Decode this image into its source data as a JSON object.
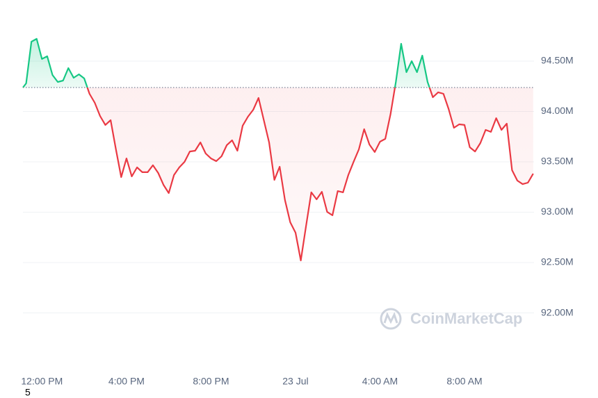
{
  "chart_data": {
    "type": "line",
    "watermark": "CoinMarketCap",
    "footnote": "5",
    "x": [
      -0.9,
      -0.75,
      -0.5,
      -0.25,
      0,
      0.25,
      0.5,
      0.75,
      1,
      1.25,
      1.5,
      1.75,
      2,
      2.25,
      2.5,
      2.75,
      3,
      3.25,
      3.5,
      3.75,
      4,
      4.25,
      4.5,
      4.75,
      5,
      5.25,
      5.5,
      5.75,
      6,
      6.25,
      6.5,
      6.75,
      7,
      7.25,
      7.5,
      7.75,
      8,
      8.25,
      8.5,
      8.75,
      9,
      9.25,
      9.5,
      9.75,
      10,
      10.25,
      10.5,
      10.75,
      11,
      11.25,
      11.5,
      11.75,
      12,
      12.25,
      12.5,
      12.75,
      13,
      13.25,
      13.5,
      13.75,
      14,
      14.25,
      14.5,
      14.75,
      15,
      15.25,
      15.5,
      15.75,
      16,
      16.25,
      16.5,
      16.75,
      17,
      17.25,
      17.5,
      17.75,
      18,
      18.25,
      18.5,
      18.75,
      19,
      19.25,
      19.5,
      19.75,
      20,
      20.25,
      20.5,
      20.75,
      21,
      21.25,
      21.5,
      21.75,
      22,
      22.25,
      22.5,
      22.75,
      23,
      23.25
    ],
    "values": [
      94.238,
      94.279,
      94.693,
      94.721,
      94.521,
      94.548,
      94.362,
      94.293,
      94.307,
      94.431,
      94.334,
      94.369,
      94.328,
      94.176,
      94.086,
      93.955,
      93.866,
      93.914,
      93.624,
      93.348,
      93.534,
      93.355,
      93.445,
      93.397,
      93.397,
      93.466,
      93.39,
      93.272,
      93.19,
      93.369,
      93.445,
      93.5,
      93.603,
      93.61,
      93.693,
      93.583,
      93.534,
      93.507,
      93.555,
      93.666,
      93.714,
      93.61,
      93.859,
      93.948,
      94.017,
      94.134,
      93.914,
      93.693,
      93.321,
      93.452,
      93.121,
      92.9,
      92.797,
      92.521,
      92.866,
      93.197,
      93.128,
      93.203,
      93.003,
      92.969,
      93.21,
      93.197,
      93.369,
      93.5,
      93.624,
      93.824,
      93.672,
      93.597,
      93.7,
      93.728,
      93.976,
      94.293,
      94.672,
      94.39,
      94.5,
      94.39,
      94.555,
      94.293,
      94.141,
      94.19,
      94.176,
      94.024,
      93.838,
      93.872,
      93.866,
      93.645,
      93.603,
      93.686,
      93.817,
      93.797,
      93.934,
      93.817,
      93.879,
      93.417,
      93.314,
      93.279,
      93.293,
      93.383
    ],
    "baseline": 94.238,
    "up_color": "#16c784",
    "down_color": "#ea3943",
    "xlim": [
      -0.9,
      23.29
    ],
    "ylim": [
      91.466,
      95.01
    ],
    "xticks": [
      {
        "value": 0,
        "label": "12:00 PM"
      },
      {
        "value": 4,
        "label": "4:00 PM"
      },
      {
        "value": 8,
        "label": "8:00 PM"
      },
      {
        "value": 12,
        "label": "23 Jul"
      },
      {
        "value": 16,
        "label": "4:00 AM"
      },
      {
        "value": 20,
        "label": "8:00 AM"
      }
    ],
    "yticks": [
      {
        "value": 92,
        "label": "92.00M"
      },
      {
        "value": 92.5,
        "label": "92.50M"
      },
      {
        "value": 93,
        "label": "93.00M"
      },
      {
        "value": 93.5,
        "label": "93.50M"
      },
      {
        "value": 94,
        "label": "94.00M"
      },
      {
        "value": 94.5,
        "label": "94.50M"
      }
    ],
    "grid": true
  }
}
